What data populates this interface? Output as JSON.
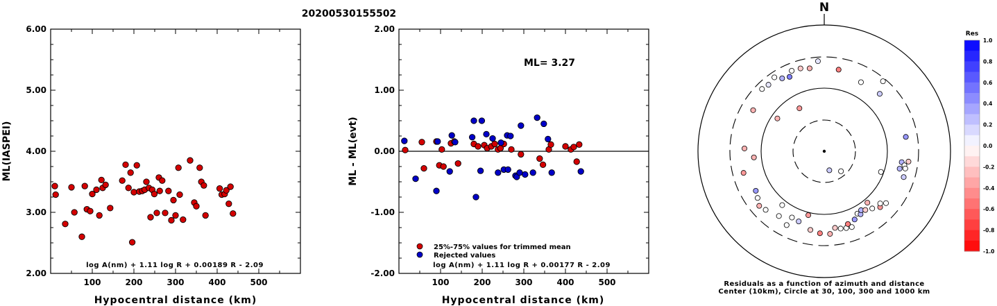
{
  "title": "20200530155502",
  "chart_data": [
    {
      "type": "scatter",
      "ylabel": "ML(IASPEI)",
      "xlabel": "Hypocentral distance (km)",
      "xlim": [
        0,
        600
      ],
      "ylim": [
        2.0,
        6.0
      ],
      "xticks": [
        "100",
        "200",
        "300",
        "400",
        "500"
      ],
      "yticks": [
        "2.00",
        "3.00",
        "4.00",
        "5.00",
        "6.00"
      ],
      "formula": "log A(nm) + 1.11 log R + 0.00189 R - 2.09",
      "colors": {
        "point": "#d40000"
      },
      "points": [
        [
          10,
          3.43
        ],
        [
          12,
          3.29
        ],
        [
          35,
          2.81
        ],
        [
          50,
          3.41
        ],
        [
          57,
          3.0
        ],
        [
          75,
          2.6
        ],
        [
          82,
          3.43
        ],
        [
          87,
          3.05
        ],
        [
          95,
          3.02
        ],
        [
          100,
          3.3
        ],
        [
          110,
          3.37
        ],
        [
          117,
          2.95
        ],
        [
          122,
          3.53
        ],
        [
          125,
          3.4
        ],
        [
          132,
          3.45
        ],
        [
          143,
          3.07
        ],
        [
          172,
          3.52
        ],
        [
          180,
          3.78
        ],
        [
          187,
          3.4
        ],
        [
          192,
          3.65
        ],
        [
          196,
          2.51
        ],
        [
          200,
          3.33
        ],
        [
          207,
          3.77
        ],
        [
          213,
          3.34
        ],
        [
          220,
          3.35
        ],
        [
          226,
          3.37
        ],
        [
          230,
          3.5
        ],
        [
          236,
          3.4
        ],
        [
          240,
          2.92
        ],
        [
          244,
          3.37
        ],
        [
          249,
          3.3
        ],
        [
          255,
          2.99
        ],
        [
          260,
          3.57
        ],
        [
          262,
          3.35
        ],
        [
          268,
          3.52
        ],
        [
          275,
          2.99
        ],
        [
          283,
          3.35
        ],
        [
          290,
          2.87
        ],
        [
          295,
          3.2
        ],
        [
          300,
          2.95
        ],
        [
          307,
          3.73
        ],
        [
          310,
          3.29
        ],
        [
          318,
          2.88
        ],
        [
          335,
          3.85
        ],
        [
          345,
          3.16
        ],
        [
          350,
          3.1
        ],
        [
          358,
          3.73
        ],
        [
          362,
          3.5
        ],
        [
          368,
          3.44
        ],
        [
          372,
          2.95
        ],
        [
          406,
          3.39
        ],
        [
          411,
          3.29
        ],
        [
          418,
          3.3
        ],
        [
          422,
          3.36
        ],
        [
          428,
          3.14
        ],
        [
          432,
          3.42
        ],
        [
          438,
          2.98
        ]
      ]
    },
    {
      "type": "scatter",
      "ylabel": "ML - ML(evt)",
      "xlabel": "Hypocentral distance (km)",
      "xlim": [
        0,
        600
      ],
      "ylim": [
        -2.0,
        2.0
      ],
      "xticks": [
        "100",
        "200",
        "300",
        "400",
        "500"
      ],
      "yticks": [
        "-2.00",
        "-1.00",
        "0.00",
        "1.00",
        "2.00"
      ],
      "annotation": "ML= 3.27",
      "formula": "log A(nm) + 1.11 log R + 0.00177 R - 2.09",
      "series": [
        {
          "name": "25%-75% values for trimmed mean",
          "color": "#d40000",
          "points": [
            [
              15,
              0.02
            ],
            [
              55,
              0.15
            ],
            [
              60,
              -0.28
            ],
            [
              90,
              0.16
            ],
            [
              97,
              -0.23
            ],
            [
              103,
              0.03
            ],
            [
              107,
              -0.25
            ],
            [
              125,
              0.13
            ],
            [
              133,
              0.16
            ],
            [
              142,
              -0.2
            ],
            [
              180,
              0.12
            ],
            [
              190,
              0.08
            ],
            [
              205,
              0.1
            ],
            [
              212,
              0.05
            ],
            [
              222,
              0.08
            ],
            [
              230,
              0.12
            ],
            [
              238,
              0.03
            ],
            [
              244,
              0.05
            ],
            [
              252,
              0.12
            ],
            [
              270,
              0.03
            ],
            [
              293,
              -0.05
            ],
            [
              338,
              -0.12
            ],
            [
              346,
              -0.22
            ],
            [
              360,
              0.03
            ],
            [
              365,
              0.11
            ],
            [
              400,
              0.08
            ],
            [
              413,
              0.03
            ],
            [
              420,
              0.07
            ],
            [
              427,
              -0.17
            ],
            [
              433,
              0.11
            ]
          ]
        },
        {
          "name": "Rejected values",
          "color": "#0000c8",
          "points": [
            [
              13,
              0.17
            ],
            [
              40,
              -0.45
            ],
            [
              90,
              -0.65
            ],
            [
              93,
              0.16
            ],
            [
              122,
              -0.33
            ],
            [
              127,
              0.26
            ],
            [
              135,
              0.15
            ],
            [
              176,
              0.23
            ],
            [
              180,
              0.5
            ],
            [
              185,
              -0.75
            ],
            [
              196,
              -0.32
            ],
            [
              199,
              0.5
            ],
            [
              210,
              0.28
            ],
            [
              225,
              0.21
            ],
            [
              238,
              -0.35
            ],
            [
              245,
              0.14
            ],
            [
              252,
              -0.3
            ],
            [
              260,
              0.26
            ],
            [
              262,
              -0.3
            ],
            [
              268,
              0.25
            ],
            [
              280,
              -0.4
            ],
            [
              283,
              -0.42
            ],
            [
              290,
              -0.35
            ],
            [
              293,
              0.42
            ],
            [
              303,
              -0.38
            ],
            [
              322,
              -0.35
            ],
            [
              332,
              0.55
            ],
            [
              348,
              0.45
            ],
            [
              358,
              0.2
            ],
            [
              367,
              -0.35
            ],
            [
              437,
              -0.33
            ]
          ]
        }
      ]
    },
    {
      "type": "scatter",
      "subtype": "polar residual map",
      "north_label": "N",
      "caption_line1": "Residuals as a function of azimuth and distance",
      "caption_line2": "Center (10km), Circle at 30, 100, 300 and 1000 km",
      "colorbar": {
        "title": "Res",
        "ticks": [
          "1.0",
          "0.8",
          "0.6",
          "0.4",
          "0.2",
          "0.0",
          "-0.2",
          "-0.4",
          "-0.6",
          "-0.8",
          "-1.0"
        ],
        "max_color": "#0000ff",
        "zero_color": "#ffffff",
        "min_color": "#ff0000"
      },
      "stations": [
        {
          "az": 315,
          "dist": 240,
          "res": 0.0
        },
        {
          "az": 320,
          "dist": 230,
          "res": 0.1
        },
        {
          "az": 326,
          "dist": 250,
          "res": 0.0
        },
        {
          "az": 330,
          "dist": 210,
          "res": 0.3
        },
        {
          "az": 335,
          "dist": 195,
          "res": 0.5
        },
        {
          "az": 338,
          "dist": 230,
          "res": 0.0
        },
        {
          "az": 344,
          "dist": 225,
          "res": -0.2
        },
        {
          "az": 350,
          "dist": 210,
          "res": -0.3
        },
        {
          "az": 356,
          "dist": 260,
          "res": 0.1
        },
        {
          "az": 10,
          "dist": 200,
          "res": -0.5
        },
        {
          "az": 28,
          "dist": 170,
          "res": 0.0
        },
        {
          "az": 44,
          "dist": 180,
          "res": 0.2
        },
        {
          "az": 40,
          "dist": 270,
          "res": 0.0
        },
        {
          "az": 300,
          "dist": 195,
          "res": -0.3
        },
        {
          "az": 330,
          "dist": 60,
          "res": -0.4
        },
        {
          "az": 305,
          "dist": 80,
          "res": -0.3
        },
        {
          "az": 140,
          "dist": 25,
          "res": 0.0
        },
        {
          "az": 165,
          "dist": 20,
          "res": 0.2
        },
        {
          "az": 110,
          "dist": 90,
          "res": 0.0
        },
        {
          "az": 80,
          "dist": 200,
          "res": 0.4
        },
        {
          "az": 98,
          "dist": 170,
          "res": 0.3
        },
        {
          "az": 100,
          "dist": 190,
          "res": 0.0
        },
        {
          "az": 102,
          "dist": 200,
          "res": 0.0
        },
        {
          "az": 97,
          "dist": 215,
          "res": -0.2
        },
        {
          "az": 108,
          "dist": 205,
          "res": 0.2
        },
        {
          "az": 103,
          "dist": 165,
          "res": 0.3
        },
        {
          "az": 255,
          "dist": 205,
          "res": -0.4
        },
        {
          "az": 240,
          "dist": 175,
          "res": 0.4
        },
        {
          "az": 235,
          "dist": 190,
          "res": 0.0
        },
        {
          "az": 230,
          "dist": 215,
          "res": -0.3
        },
        {
          "az": 225,
          "dist": 200,
          "res": 0.0
        },
        {
          "az": 265,
          "dist": 130,
          "res": -0.3
        },
        {
          "az": 272,
          "dist": 180,
          "res": -0.3
        },
        {
          "az": 206,
          "dist": 145,
          "res": 0.0
        },
        {
          "az": 200,
          "dist": 150,
          "res": 0.2
        },
        {
          "az": 194,
          "dist": 110,
          "res": -0.4
        },
        {
          "az": 190,
          "dist": 180,
          "res": -0.2
        },
        {
          "az": 183,
          "dist": 195,
          "res": -0.5
        },
        {
          "az": 176,
          "dist": 200,
          "res": -0.3
        },
        {
          "az": 172,
          "dist": 165,
          "res": -0.2
        },
        {
          "az": 168,
          "dist": 175,
          "res": 0.0
        },
        {
          "az": 164,
          "dist": 180,
          "res": 0.0
        },
        {
          "az": 160,
          "dist": 185,
          "res": 0.0
        },
        {
          "az": 162,
          "dist": 160,
          "res": -0.5
        },
        {
          "az": 156,
          "dist": 150,
          "res": 0.4
        },
        {
          "az": 152,
          "dist": 130,
          "res": 0.0
        },
        {
          "az": 150,
          "dist": 140,
          "res": 0.3
        },
        {
          "az": 148,
          "dist": 125,
          "res": 0.3
        },
        {
          "az": 145,
          "dist": 135,
          "res": -0.2
        },
        {
          "az": 140,
          "dist": 150,
          "res": 0.0
        },
        {
          "az": 135,
          "dist": 175,
          "res": -0.4
        },
        {
          "az": 133,
          "dist": 160,
          "res": 0.0
        },
        {
          "az": 130,
          "dist": 185,
          "res": 0.0
        },
        {
          "az": 140,
          "dist": 115,
          "res": -0.3
        },
        {
          "az": 207,
          "dist": 200,
          "res": 0.0
        },
        {
          "az": 215,
          "dist": 175,
          "res": 0.0
        },
        {
          "az": 218,
          "dist": 120,
          "res": 0.0
        }
      ]
    }
  ]
}
